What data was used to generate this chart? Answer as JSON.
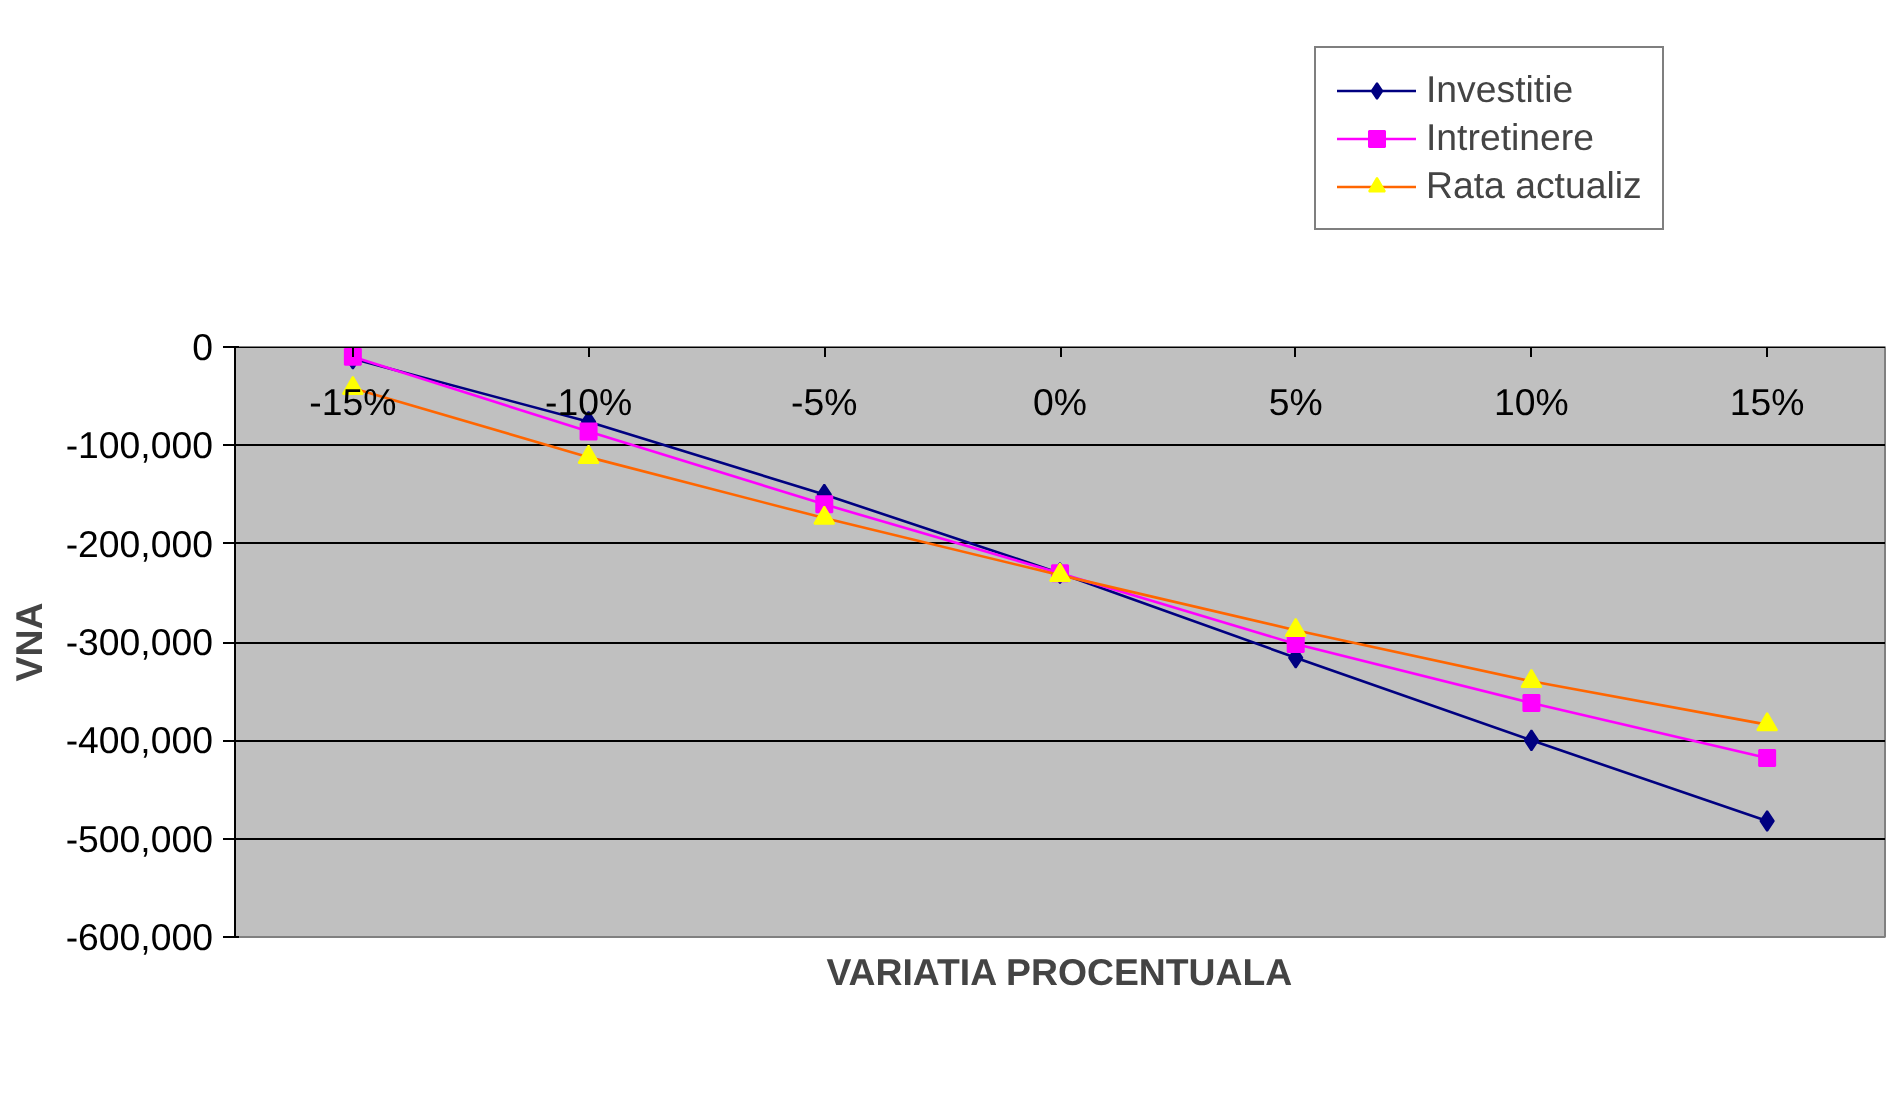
{
  "chart_data": {
    "type": "line",
    "xlabel": "VARIATIA PROCENTUALA",
    "ylabel": "VNA",
    "categories": [
      "-15%",
      "-10%",
      "-5%",
      "0%",
      "5%",
      "10%",
      "15%"
    ],
    "series": [
      {
        "name": "Investitie",
        "color": "#000080",
        "marker": "diamond",
        "values": [
          -12000,
          -76000,
          -150000,
          -230000,
          -316000,
          -400000,
          -482000
        ]
      },
      {
        "name": "Intretinere",
        "color": "#ff00ff",
        "marker": "square",
        "values": [
          -10000,
          -86000,
          -160000,
          -230000,
          -302000,
          -362000,
          -418000
        ]
      },
      {
        "name": "Rata actualiz",
        "color": "#ff6600",
        "colors": [
          "#ffff00",
          "#ffff00",
          "#ffff00",
          "#ffff00",
          "#ffff00",
          "#ffff00",
          "#ffff00"
        ],
        "marker": "triangle",
        "values": [
          -42000,
          -112000,
          -174000,
          -232000,
          -288000,
          -340000,
          -384000
        ]
      }
    ],
    "ylim": [
      -600000,
      0
    ],
    "yticks": [
      {
        "value": -600000,
        "label": "-600,000"
      },
      {
        "value": -500000,
        "label": "-500,000"
      },
      {
        "value": -400000,
        "label": "-400,000"
      },
      {
        "value": -300000,
        "label": "-300,000"
      },
      {
        "value": -200000,
        "label": "-200,000"
      },
      {
        "value": -100000,
        "label": "-100,000"
      },
      0
    ],
    "grid": "y",
    "legend": "top right",
    "line_style": "solid"
  }
}
